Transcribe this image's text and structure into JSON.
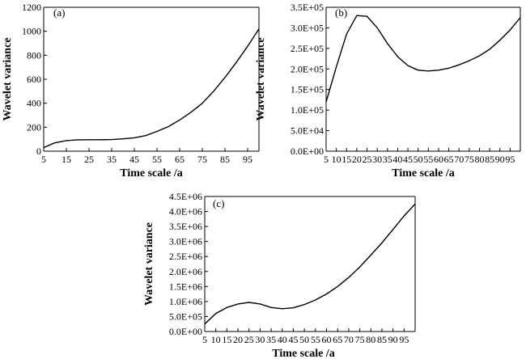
{
  "chart_data": [
    {
      "type": "line",
      "panel_label": "(a)",
      "xlabel": "Time scale /a",
      "ylabel": "Wavelet variance",
      "xlim": [
        5,
        100
      ],
      "ylim": [
        0,
        1200
      ],
      "xticks": [
        5,
        15,
        25,
        35,
        45,
        55,
        65,
        75,
        85,
        95
      ],
      "yticks": [
        0,
        200,
        400,
        600,
        800,
        1000,
        1200
      ],
      "ytick_labels": [
        "0",
        "200",
        "400",
        "600",
        "800",
        "1000",
        "1200"
      ],
      "series": [
        {
          "x": [
            5,
            8,
            10,
            15,
            20,
            25,
            30,
            35,
            40,
            45,
            50,
            55,
            60,
            65,
            70,
            75,
            80,
            85,
            90,
            95,
            100
          ],
          "values": [
            30,
            55,
            70,
            88,
            95,
            96,
            96,
            97,
            103,
            112,
            130,
            165,
            205,
            260,
            325,
            400,
            500,
            615,
            740,
            875,
            1020
          ]
        }
      ]
    },
    {
      "type": "line",
      "panel_label": "(b)",
      "xlabel": "Time scale /a",
      "ylabel": "Wavelet variance",
      "xlim": [
        5,
        100
      ],
      "ylim": [
        0,
        350000
      ],
      "xticks": [
        5,
        10,
        15,
        20,
        25,
        30,
        35,
        40,
        45,
        50,
        55,
        60,
        65,
        70,
        75,
        80,
        85,
        90,
        95
      ],
      "yticks": [
        0,
        50000,
        100000,
        150000,
        200000,
        250000,
        300000,
        350000
      ],
      "ytick_labels": [
        "0.0E+00",
        "5.0E+04",
        "1.0E+05",
        "1.5E+05",
        "2.0E+05",
        "2.5E+05",
        "3.0E+05",
        "3.5E+05"
      ],
      "series": [
        {
          "x": [
            5,
            10,
            15,
            20,
            25,
            30,
            35,
            40,
            45,
            50,
            55,
            60,
            65,
            70,
            75,
            80,
            85,
            90,
            95,
            100
          ],
          "values": [
            120000,
            205000,
            285000,
            330000,
            328000,
            300000,
            262000,
            230000,
            208000,
            197000,
            195000,
            197000,
            202000,
            210000,
            220000,
            232000,
            248000,
            270000,
            295000,
            325000
          ]
        }
      ]
    },
    {
      "type": "line",
      "panel_label": "(c)",
      "xlabel": "Time scale /a",
      "ylabel": "Wavelet variance",
      "xlim": [
        5,
        100
      ],
      "ylim": [
        0,
        4500000
      ],
      "xticks": [
        5,
        10,
        15,
        20,
        25,
        30,
        35,
        40,
        45,
        50,
        55,
        60,
        65,
        70,
        75,
        80,
        85,
        90,
        95
      ],
      "yticks": [
        0,
        500000,
        1000000,
        1500000,
        2000000,
        2500000,
        3000000,
        3500000,
        4000000,
        4500000
      ],
      "ytick_labels": [
        "0.0E+00",
        "5.0E+05",
        "1.0E+06",
        "1.5E+06",
        "2.0E+06",
        "2.5E+06",
        "3.0E+06",
        "3.5E+06",
        "4.0E+06",
        "4.5E+06"
      ],
      "series": [
        {
          "x": [
            5,
            10,
            15,
            20,
            25,
            30,
            35,
            40,
            45,
            50,
            55,
            60,
            65,
            70,
            75,
            80,
            85,
            90,
            95,
            100
          ],
          "values": [
            250000,
            600000,
            800000,
            920000,
            970000,
            920000,
            800000,
            760000,
            790000,
            900000,
            1050000,
            1250000,
            1500000,
            1800000,
            2150000,
            2550000,
            2950000,
            3400000,
            3850000,
            4250000
          ]
        }
      ]
    }
  ]
}
